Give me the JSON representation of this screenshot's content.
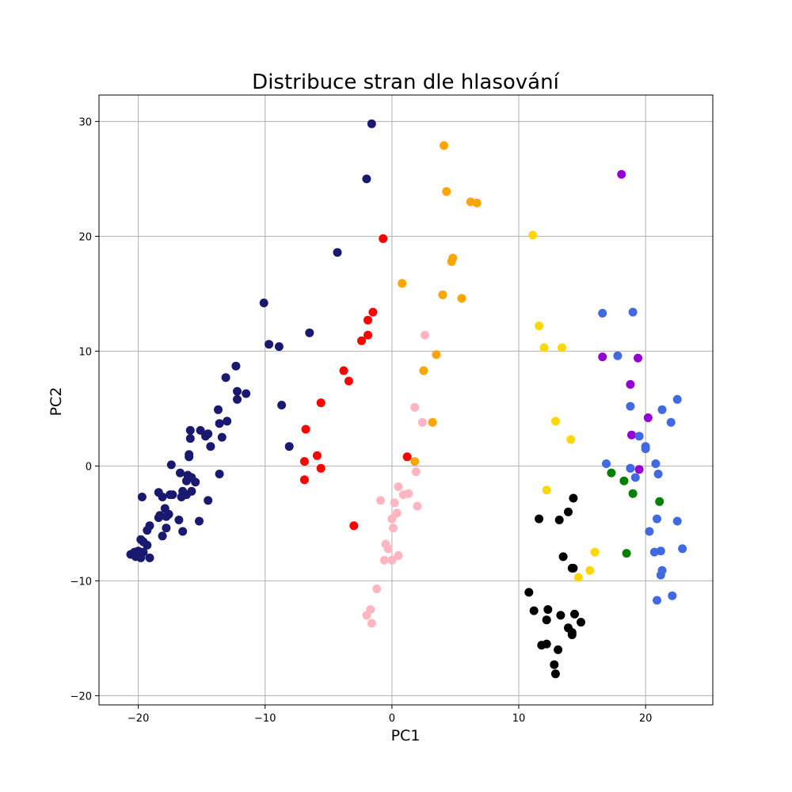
{
  "chart_data": {
    "type": "scatter",
    "title": "Distribuce stran dle hlasování",
    "xlabel": "PC1",
    "ylabel": "PC2",
    "xlim": [
      -23.1,
      25.3
    ],
    "ylim": [
      -20.8,
      32.3
    ],
    "xticks": [
      -20,
      -10,
      0,
      10,
      20
    ],
    "yticks": [
      -20,
      -10,
      0,
      10,
      20,
      30
    ],
    "grid": true,
    "legend": "none",
    "series": [
      {
        "name": "navy",
        "color": "#191970",
        "points": [
          [
            -1.6,
            29.8
          ],
          [
            -2.0,
            25.0
          ],
          [
            -4.3,
            18.6
          ],
          [
            -10.1,
            14.2
          ],
          [
            -9.7,
            10.6
          ],
          [
            -8.9,
            10.4
          ],
          [
            -6.5,
            11.6
          ],
          [
            -12.3,
            8.7
          ],
          [
            -13.1,
            7.7
          ],
          [
            -12.2,
            6.5
          ],
          [
            -11.5,
            6.3
          ],
          [
            -12.2,
            5.8
          ],
          [
            -8.7,
            5.3
          ],
          [
            -13.7,
            4.9
          ],
          [
            -13.0,
            3.9
          ],
          [
            -13.6,
            3.7
          ],
          [
            -15.9,
            3.1
          ],
          [
            -15.1,
            3.1
          ],
          [
            -14.5,
            2.8
          ],
          [
            -14.7,
            2.6
          ],
          [
            -15.9,
            2.4
          ],
          [
            -13.4,
            2.5
          ],
          [
            -8.1,
            1.7
          ],
          [
            -14.3,
            1.7
          ],
          [
            -16.0,
            1.0
          ],
          [
            -16.0,
            0.8
          ],
          [
            -17.4,
            0.1
          ],
          [
            -13.6,
            -0.7
          ],
          [
            -16.7,
            -0.6
          ],
          [
            -16.1,
            -0.8
          ],
          [
            -15.8,
            -1.0
          ],
          [
            -16.2,
            -1.3
          ],
          [
            -15.5,
            -1.4
          ],
          [
            -18.4,
            -2.3
          ],
          [
            -16.5,
            -2.2
          ],
          [
            -15.8,
            -2.2
          ],
          [
            -16.2,
            -2.5
          ],
          [
            -17.3,
            -2.5
          ],
          [
            -16.6,
            -2.7
          ],
          [
            -18.1,
            -2.7
          ],
          [
            -17.5,
            -2.5
          ],
          [
            -19.7,
            -2.7
          ],
          [
            -14.5,
            -3.0
          ],
          [
            -17.9,
            -3.7
          ],
          [
            -18.3,
            -4.3
          ],
          [
            -17.6,
            -4.2
          ],
          [
            -18.4,
            -4.5
          ],
          [
            -17.8,
            -4.4
          ],
          [
            -16.8,
            -4.7
          ],
          [
            -15.2,
            -4.8
          ],
          [
            -19.1,
            -5.2
          ],
          [
            -17.8,
            -5.4
          ],
          [
            -19.3,
            -5.6
          ],
          [
            -16.5,
            -5.7
          ],
          [
            -18.1,
            -6.1
          ],
          [
            -19.8,
            -6.4
          ],
          [
            -19.6,
            -6.6
          ],
          [
            -19.3,
            -6.9
          ],
          [
            -20.0,
            -7.4
          ],
          [
            -20.6,
            -7.7
          ],
          [
            -20.3,
            -7.5
          ],
          [
            -19.6,
            -7.5
          ],
          [
            -19.8,
            -8.0
          ],
          [
            -19.1,
            -8.0
          ],
          [
            -20.2,
            -7.9
          ],
          [
            -19.9,
            -7.7
          ]
        ]
      },
      {
        "name": "red",
        "color": "#ff0000",
        "points": [
          [
            -0.7,
            19.8
          ],
          [
            -1.5,
            13.4
          ],
          [
            -1.9,
            12.7
          ],
          [
            -1.9,
            11.4
          ],
          [
            -2.4,
            10.9
          ],
          [
            -3.8,
            8.3
          ],
          [
            -3.4,
            7.4
          ],
          [
            -5.6,
            5.5
          ],
          [
            -6.8,
            3.2
          ],
          [
            -5.9,
            0.9
          ],
          [
            -6.9,
            0.4
          ],
          [
            -5.6,
            -0.2
          ],
          [
            -6.9,
            -1.2
          ],
          [
            -3.0,
            -5.2
          ],
          [
            1.2,
            0.8
          ]
        ]
      },
      {
        "name": "orange",
        "color": "#ffa500",
        "points": [
          [
            4.1,
            27.9
          ],
          [
            4.3,
            23.9
          ],
          [
            6.2,
            23.0
          ],
          [
            6.7,
            22.9
          ],
          [
            4.8,
            18.1
          ],
          [
            4.7,
            17.8
          ],
          [
            0.8,
            15.9
          ],
          [
            4.0,
            14.9
          ],
          [
            5.5,
            14.6
          ],
          [
            3.5,
            9.7
          ],
          [
            2.5,
            8.3
          ],
          [
            3.2,
            3.8
          ],
          [
            1.8,
            0.4
          ]
        ]
      },
      {
        "name": "pink",
        "color": "#ffb6c1",
        "points": [
          [
            2.6,
            11.4
          ],
          [
            1.8,
            5.1
          ],
          [
            2.4,
            3.8
          ],
          [
            1.9,
            -0.5
          ],
          [
            0.5,
            -1.8
          ],
          [
            1.3,
            -2.4
          ],
          [
            0.9,
            -2.5
          ],
          [
            -0.9,
            -3.0
          ],
          [
            0.2,
            -3.2
          ],
          [
            2.0,
            -3.5
          ],
          [
            0.4,
            -4.1
          ],
          [
            0.0,
            -4.6
          ],
          [
            0.1,
            -5.4
          ],
          [
            -0.5,
            -6.8
          ],
          [
            -0.3,
            -7.2
          ],
          [
            0.5,
            -7.8
          ],
          [
            -0.6,
            -8.2
          ],
          [
            0.0,
            -8.2
          ],
          [
            -1.2,
            -10.7
          ],
          [
            -1.7,
            -12.5
          ],
          [
            -2.0,
            -13.0
          ],
          [
            -1.6,
            -13.7
          ]
        ]
      },
      {
        "name": "gold",
        "color": "#ffd700",
        "points": [
          [
            11.1,
            20.1
          ],
          [
            11.6,
            12.2
          ],
          [
            12.0,
            10.3
          ],
          [
            13.4,
            10.3
          ],
          [
            12.9,
            3.9
          ],
          [
            14.1,
            2.3
          ],
          [
            12.2,
            -2.1
          ],
          [
            16.0,
            -7.5
          ],
          [
            15.6,
            -9.1
          ],
          [
            14.7,
            -9.7
          ]
        ]
      },
      {
        "name": "black",
        "color": "#000000",
        "points": [
          [
            14.3,
            -2.8
          ],
          [
            13.9,
            -4.0
          ],
          [
            11.6,
            -4.6
          ],
          [
            13.2,
            -4.7
          ],
          [
            13.5,
            -7.9
          ],
          [
            14.2,
            -8.9
          ],
          [
            14.3,
            -8.9
          ],
          [
            10.8,
            -11.0
          ],
          [
            11.2,
            -12.6
          ],
          [
            12.3,
            -12.5
          ],
          [
            13.3,
            -13.0
          ],
          [
            14.4,
            -12.9
          ],
          [
            12.2,
            -13.4
          ],
          [
            14.9,
            -13.6
          ],
          [
            13.9,
            -14.1
          ],
          [
            14.2,
            -14.5
          ],
          [
            14.2,
            -14.7
          ],
          [
            11.8,
            -15.6
          ],
          [
            12.2,
            -15.5
          ],
          [
            13.1,
            -16.0
          ],
          [
            12.8,
            -17.3
          ],
          [
            12.9,
            -18.1
          ]
        ]
      },
      {
        "name": "purple",
        "color": "#9400d3",
        "points": [
          [
            18.1,
            25.4
          ],
          [
            16.6,
            9.5
          ],
          [
            19.4,
            9.4
          ],
          [
            18.8,
            7.1
          ],
          [
            20.2,
            4.2
          ],
          [
            18.9,
            2.7
          ],
          [
            19.5,
            -0.3
          ]
        ]
      },
      {
        "name": "green",
        "color": "#008000",
        "points": [
          [
            17.3,
            -0.6
          ],
          [
            18.3,
            -1.3
          ],
          [
            19.0,
            -2.4
          ],
          [
            21.1,
            -3.1
          ],
          [
            18.5,
            -7.6
          ]
        ]
      },
      {
        "name": "royalblue",
        "color": "#4169e1",
        "points": [
          [
            16.6,
            13.3
          ],
          [
            17.8,
            9.6
          ],
          [
            19.0,
            13.4
          ],
          [
            18.8,
            5.2
          ],
          [
            21.3,
            4.9
          ],
          [
            22.5,
            5.8
          ],
          [
            22.0,
            3.8
          ],
          [
            19.5,
            2.6
          ],
          [
            20.0,
            1.7
          ],
          [
            20.0,
            1.5
          ],
          [
            16.9,
            0.2
          ],
          [
            18.8,
            -0.2
          ],
          [
            20.8,
            0.2
          ],
          [
            19.2,
            -1.0
          ],
          [
            21.0,
            -0.7
          ],
          [
            20.9,
            -4.6
          ],
          [
            22.5,
            -4.8
          ],
          [
            20.3,
            -5.7
          ],
          [
            20.7,
            -7.5
          ],
          [
            21.2,
            -7.4
          ],
          [
            22.9,
            -7.2
          ],
          [
            21.3,
            -9.1
          ],
          [
            21.2,
            -9.5
          ],
          [
            22.1,
            -11.3
          ],
          [
            20.9,
            -11.7
          ]
        ]
      }
    ]
  }
}
